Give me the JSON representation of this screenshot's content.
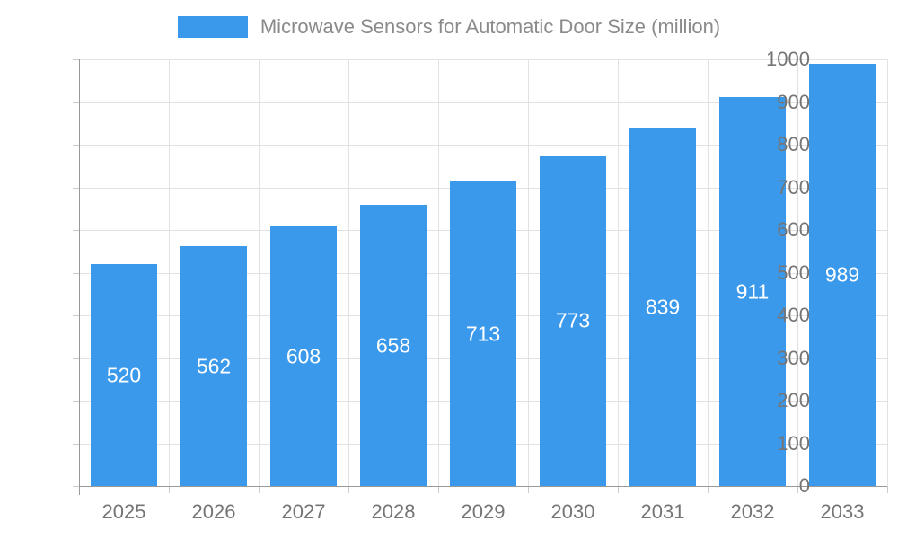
{
  "chart_data": {
    "type": "bar",
    "title": "Microwave Sensors for Automatic Door Size (million)",
    "categories": [
      "2025",
      "2026",
      "2027",
      "2028",
      "2029",
      "2030",
      "2031",
      "2032",
      "2033"
    ],
    "values": [
      520,
      562,
      608,
      658,
      713,
      773,
      839,
      911,
      989
    ],
    "xlabel": "",
    "ylabel": "",
    "ylim": [
      0,
      1000
    ],
    "ytick_step": 100,
    "grid": "both",
    "legend_position": "top",
    "value_labels": "inside-center"
  },
  "colors": {
    "bar": "#3B99EC",
    "grid": "#E2E2E2",
    "axis": "#999999",
    "tick": "#CCCCCC",
    "axis_label": "#757575",
    "legend_text": "#8A8A8A",
    "value_label": "#FFFFFF",
    "background": "#FFFFFF"
  }
}
